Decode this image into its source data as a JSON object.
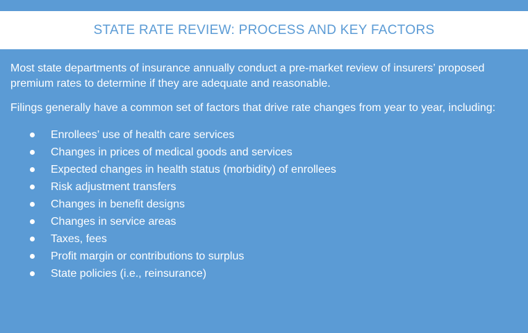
{
  "title": "STATE RATE REVIEW: PROCESS AND KEY FACTORS",
  "paragraphs": [
    "Most state departments of insurance annually conduct a pre-market review of insurers’ proposed premium rates to determine if they are adequate and reasonable.",
    "Filings generally have a common set of factors that drive rate changes from year to year, including:"
  ],
  "bullets": [
    "Enrollees’ use of health care services",
    "Changes in prices of medical goods and services",
    "Expected changes in health status (morbidity) of enrollees",
    "Risk adjustment transfers",
    "Changes in benefit designs",
    "Changes in service areas",
    "Taxes, fees",
    "Profit margin or contributions to surplus",
    "State policies (i.e., reinsurance)"
  ],
  "colors": {
    "background": "#5b9bd5",
    "title_bar": "#ffffff",
    "title_text": "#5b9bd5",
    "body_text": "#ffffff"
  }
}
